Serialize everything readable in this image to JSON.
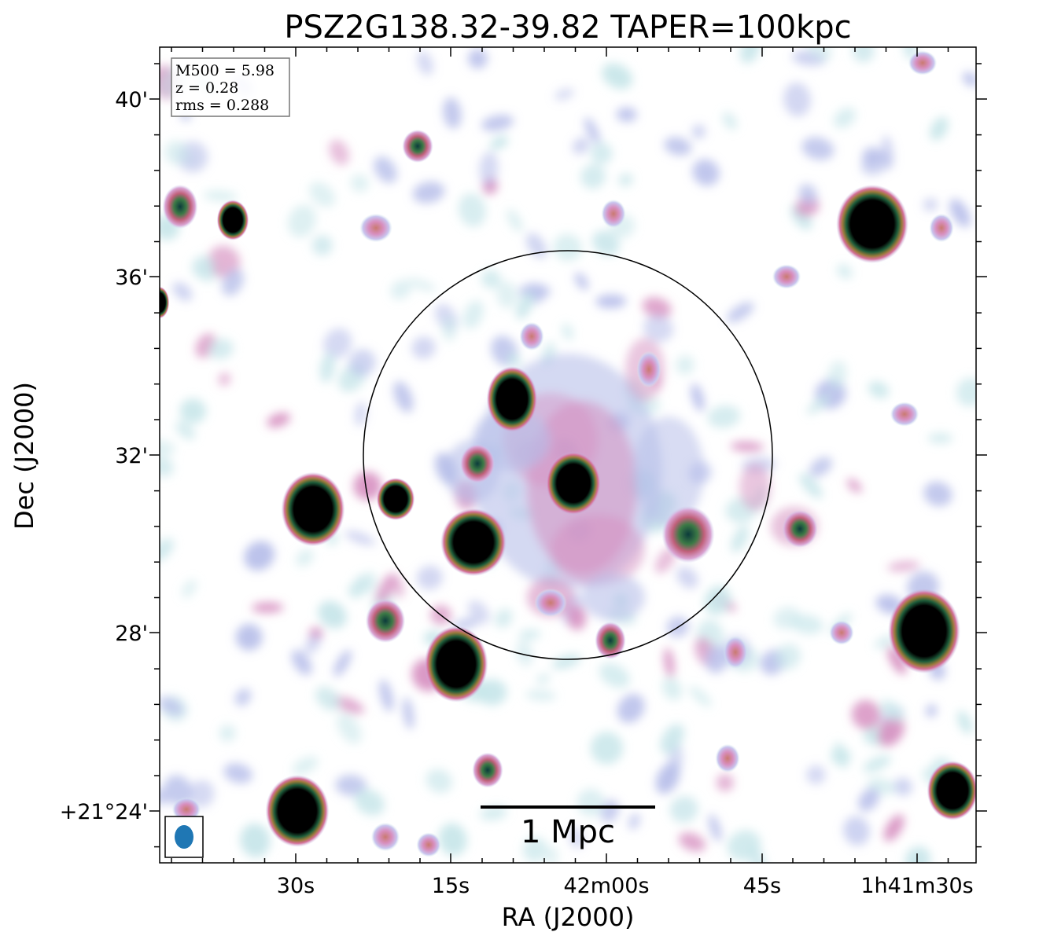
{
  "chart_data": {
    "type": "heatmap",
    "title": "PSZ2G138.32-39.82 TAPER=100kpc",
    "xlabel": "RA (J2000)",
    "ylabel": "Dec (J2000)",
    "x_ticks": [
      "30s",
      "15s",
      "42m00s",
      "45s",
      "1h41m30s"
    ],
    "y_ticks": [
      "40'",
      "36'",
      "32'",
      "28'",
      "+21°24'"
    ],
    "info_box": {
      "m500": "M500 = 5.98",
      "z": "z = 0.28",
      "rms": "rms = 0.288"
    },
    "scalebar_label": "1 Mpc",
    "colormap": "cubehelix_r",
    "colors": {
      "faint": "#c8e6ea",
      "low": "#b8bfea",
      "mid": "#d68fc0",
      "high": "#c96e8a",
      "peak": "#000000",
      "beam": "#1f77b4"
    }
  }
}
